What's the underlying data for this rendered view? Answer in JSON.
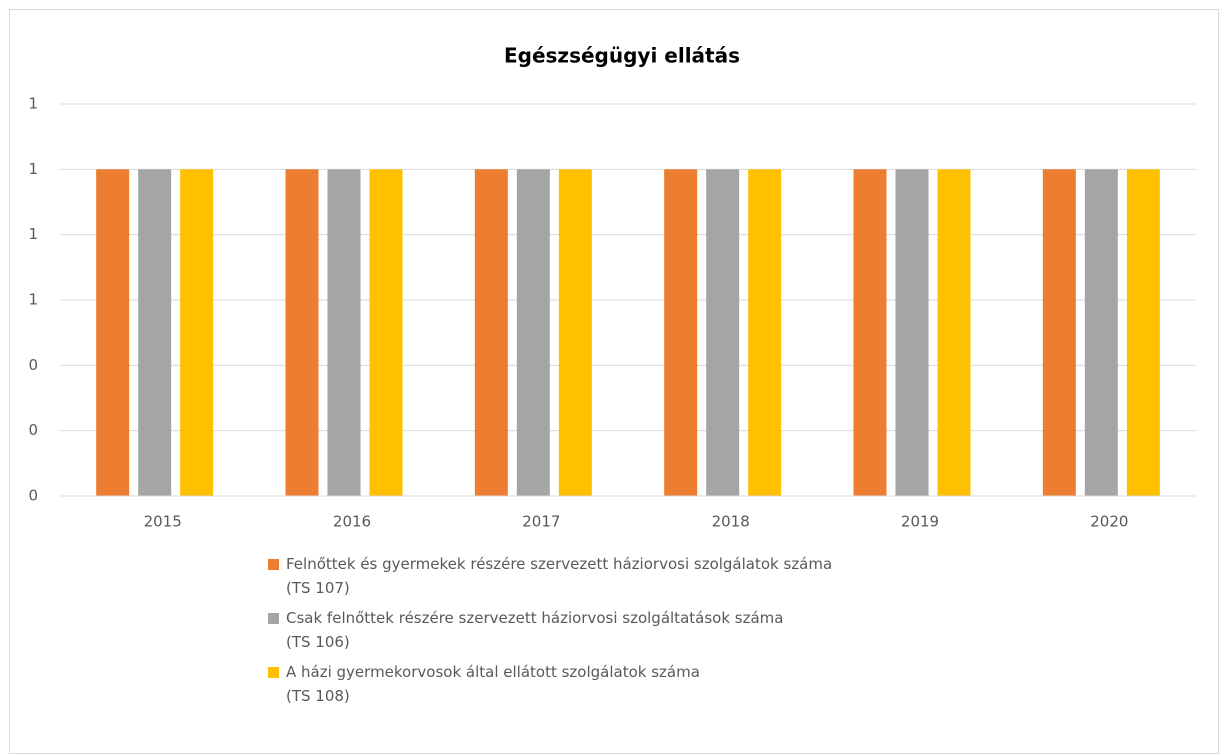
{
  "chart_data": {
    "type": "bar",
    "title": "Egészségügyi ellátás",
    "categories": [
      "2015",
      "2016",
      "2017",
      "2018",
      "2019",
      "2020"
    ],
    "series": [
      {
        "name": "Felnőttek és gyermekek részére szervezett háziorvosi szolgálatok száma\n(TS 107)",
        "color": "#ed7d31",
        "values": [
          1,
          1,
          1,
          1,
          1,
          1
        ]
      },
      {
        "name": "Csak felnőttek részére szervezett háziorvosi szolgáltatások száma\n(TS 106)",
        "color": "#a5a5a5",
        "values": [
          1,
          1,
          1,
          1,
          1,
          1
        ]
      },
      {
        "name": "A házi gyermekorvosok által ellátott szolgálatok száma\n(TS 108)",
        "color": "#ffc000",
        "values": [
          1,
          1,
          1,
          1,
          1,
          1
        ]
      }
    ],
    "ylim": [
      0,
      1.2
    ],
    "yticks": [
      0,
      {
        "value": 0.2,
        "label": "0"
      },
      {
        "value": 0.4,
        "label": "0"
      },
      {
        "value": 0.6,
        "label": "1"
      },
      {
        "value": 0.8,
        "label": "1"
      },
      1,
      {
        "value": 1.2,
        "label": "1"
      }
    ],
    "grid": true,
    "legend": "bottom"
  }
}
